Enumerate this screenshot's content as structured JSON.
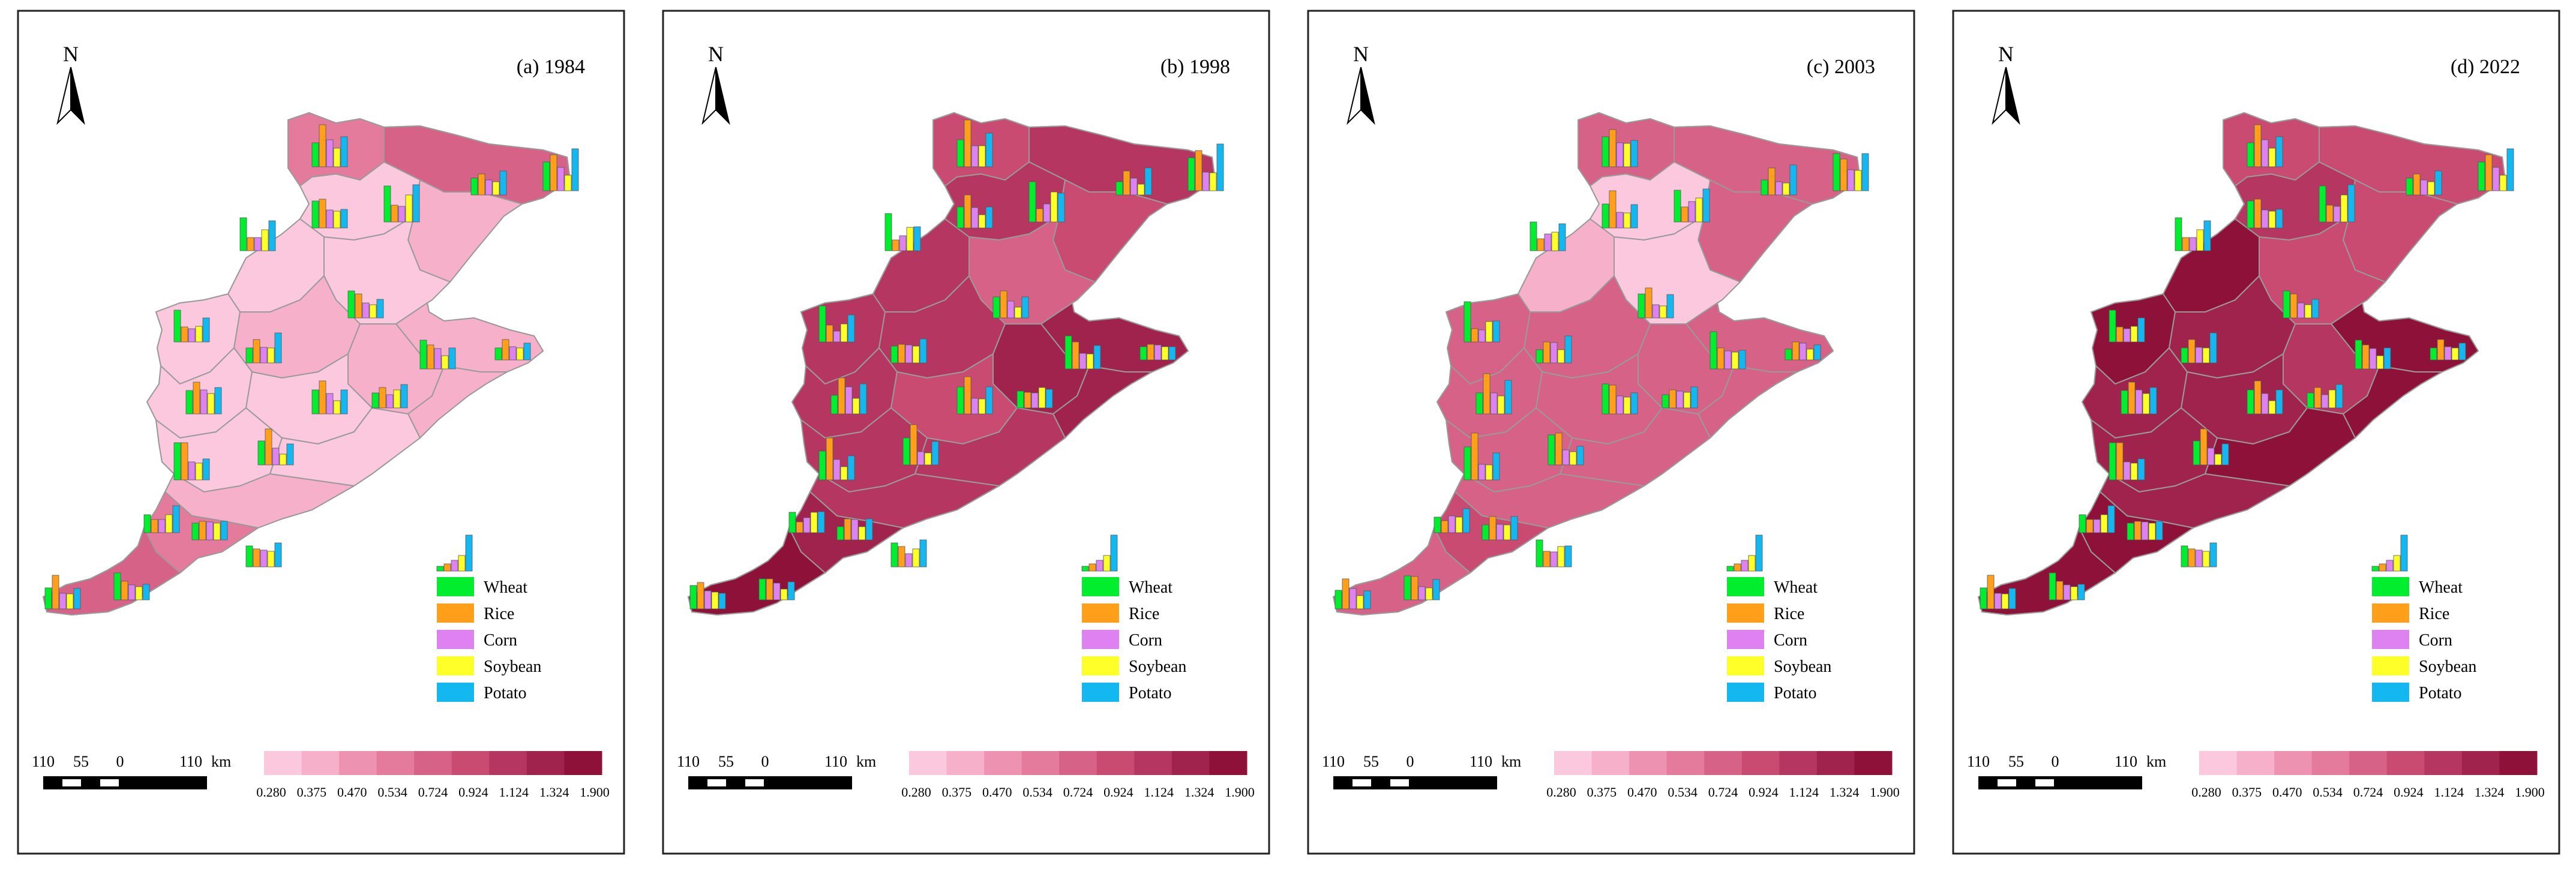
{
  "north_label": "N",
  "panels": [
    {
      "title": "(a) 1984"
    },
    {
      "title": "(b) 1998"
    },
    {
      "title": "(c) 2003"
    },
    {
      "title": "(d) 2022"
    }
  ],
  "crop_legend": [
    {
      "name": "Wheat",
      "color": "#00ee2e"
    },
    {
      "name": "Rice",
      "color": "#ff9f1a"
    },
    {
      "name": "Corn",
      "color": "#dd82f0"
    },
    {
      "name": "Soybean",
      "color": "#ffff2a"
    },
    {
      "name": "Potato",
      "color": "#14b8f0"
    }
  ],
  "color_scale": {
    "ticks": [
      "0.280",
      "0.375",
      "0.470",
      "0.534",
      "0.724",
      "0.924",
      "1.124",
      "1.324",
      "1.900"
    ],
    "colors": [
      "#fbc8dd",
      "#f6b0ca",
      "#ee92b2",
      "#e47a9c",
      "#d76287",
      "#c94b71",
      "#b53660",
      "#a0234e",
      "#8e1139"
    ]
  },
  "scale_bar": {
    "labels": [
      "110",
      "55",
      "0",
      "110"
    ],
    "unit": "km"
  },
  "chart_data": [
    {
      "type": "map",
      "title": "(a) 1984"
    },
    {
      "type": "map",
      "title": "(b) 1998"
    },
    {
      "type": "map",
      "title": "(c) 2003"
    },
    {
      "type": "map",
      "title": "(d) 2022"
    }
  ]
}
